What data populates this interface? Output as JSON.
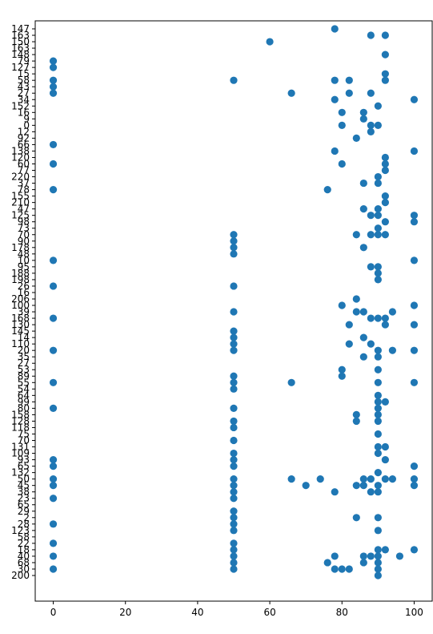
{
  "chart_data": {
    "type": "scatter",
    "title": "",
    "xlabel": "",
    "ylabel": "",
    "xlim": [
      -5,
      105
    ],
    "x_ticks": [
      0,
      20,
      40,
      60,
      80,
      100
    ],
    "y_categories": [
      "147",
      "163",
      "150",
      "163",
      "148",
      "79",
      "127",
      "15",
      "58",
      "43",
      "27",
      "34",
      "152",
      "16",
      "9",
      "0",
      "12",
      "92",
      "66",
      "138",
      "120",
      "60",
      "77",
      "220",
      "37",
      "78",
      "155",
      "210",
      "47",
      "125",
      "98",
      "73",
      "70",
      "90",
      "178",
      "48",
      "10",
      "95",
      "188",
      "198",
      "26",
      "16",
      "206",
      "100",
      "39",
      "168",
      "130",
      "145",
      "14",
      "110",
      "20",
      "35",
      "27",
      "53",
      "89",
      "55",
      "54",
      "64",
      "99",
      "80",
      "158",
      "128",
      "118",
      "75",
      "70",
      "131",
      "109",
      "93",
      "65",
      "132",
      "50",
      "45",
      "38",
      "23",
      "65",
      "29",
      "2",
      "28",
      "123",
      "58",
      "22",
      "18",
      "40",
      "68",
      "30",
      "200"
    ],
    "colors": {
      "marker": "#1f77b4"
    },
    "series": [
      {
        "points": [
          {
            "x": 78,
            "y": "147"
          },
          {
            "x": 88,
            "y": "163"
          },
          {
            "x": 60,
            "y": "150"
          },
          {
            "x": 92,
            "y": "163"
          },
          {
            "x": 92,
            "y": "148"
          },
          {
            "x": 0,
            "y": "79"
          },
          {
            "x": 0,
            "y": "127"
          },
          {
            "x": 92,
            "y": "15"
          },
          {
            "x": 92,
            "y": "58"
          },
          {
            "x": 0,
            "y": "43"
          },
          {
            "x": 66,
            "y": "27"
          },
          {
            "x": 78,
            "y": "34"
          },
          {
            "x": 100,
            "y": "34"
          },
          {
            "x": 90,
            "y": "152"
          },
          {
            "x": 80,
            "y": "16"
          },
          {
            "x": 86,
            "y": "9"
          },
          {
            "x": 80,
            "y": "0"
          },
          {
            "x": 88,
            "y": "0"
          },
          {
            "x": 90,
            "y": "0"
          },
          {
            "x": 88,
            "y": "12"
          },
          {
            "x": 84,
            "y": "92"
          },
          {
            "x": 0,
            "y": "66"
          },
          {
            "x": 78,
            "y": "138"
          },
          {
            "x": 100,
            "y": "138"
          },
          {
            "x": 92,
            "y": "120"
          },
          {
            "x": 0,
            "y": "60"
          },
          {
            "x": 80,
            "y": "60"
          },
          {
            "x": 92,
            "y": "60"
          },
          {
            "x": 92,
            "y": "77"
          },
          {
            "x": 90,
            "y": "220"
          },
          {
            "x": 86,
            "y": "37"
          },
          {
            "x": 90,
            "y": "37"
          },
          {
            "x": 0,
            "y": "78"
          },
          {
            "x": 76,
            "y": "78"
          },
          {
            "x": 92,
            "y": "155"
          },
          {
            "x": 92,
            "y": "210"
          },
          {
            "x": 86,
            "y": "47"
          },
          {
            "x": 90,
            "y": "47"
          },
          {
            "x": 88,
            "y": "125"
          },
          {
            "x": 90,
            "y": "125"
          },
          {
            "x": 100,
            "y": "125"
          },
          {
            "x": 92,
            "y": "98"
          },
          {
            "x": 100,
            "y": "98"
          },
          {
            "x": 90,
            "y": "73"
          },
          {
            "x": 50,
            "y": "70"
          },
          {
            "x": 84,
            "y": "70"
          },
          {
            "x": 88,
            "y": "70"
          },
          {
            "x": 50,
            "y": "90"
          },
          {
            "x": 50,
            "y": "178"
          },
          {
            "x": 86,
            "y": "178"
          },
          {
            "x": 50,
            "y": "48"
          },
          {
            "x": 0,
            "y": "10"
          },
          {
            "x": 100,
            "y": "10"
          },
          {
            "x": 88,
            "y": "95"
          },
          {
            "x": 90,
            "y": "95"
          },
          {
            "x": 90,
            "y": "188"
          },
          {
            "x": 90,
            "y": "198"
          },
          {
            "x": 0,
            "y": "26"
          },
          {
            "x": 50,
            "y": "26"
          },
          {
            "x": 86,
            "y": "16"
          },
          {
            "x": 84,
            "y": "206"
          },
          {
            "x": 80,
            "y": "100"
          },
          {
            "x": 100,
            "y": "100"
          },
          {
            "x": 50,
            "y": "39"
          },
          {
            "x": 84,
            "y": "39"
          },
          {
            "x": 86,
            "y": "39"
          },
          {
            "x": 94,
            "y": "39"
          },
          {
            "x": 0,
            "y": "168"
          },
          {
            "x": 88,
            "y": "168"
          },
          {
            "x": 90,
            "y": "168"
          },
          {
            "x": 92,
            "y": "168"
          },
          {
            "x": 82,
            "y": "130"
          },
          {
            "x": 92,
            "y": "130"
          },
          {
            "x": 100,
            "y": "130"
          },
          {
            "x": 50,
            "y": "145"
          },
          {
            "x": 50,
            "y": "14"
          },
          {
            "x": 86,
            "y": "14"
          },
          {
            "x": 50,
            "y": "110"
          },
          {
            "x": 82,
            "y": "110"
          },
          {
            "x": 88,
            "y": "110"
          },
          {
            "x": 0,
            "y": "20"
          },
          {
            "x": 50,
            "y": "20"
          },
          {
            "x": 90,
            "y": "20"
          },
          {
            "x": 94,
            "y": "20"
          },
          {
            "x": 100,
            "y": "20"
          },
          {
            "x": 86,
            "y": "35"
          },
          {
            "x": 90,
            "y": "35"
          },
          {
            "x": 0,
            "y": "27"
          },
          {
            "x": 82,
            "y": "27"
          },
          {
            "x": 88,
            "y": "27"
          },
          {
            "x": 80,
            "y": "53"
          },
          {
            "x": 90,
            "y": "53"
          },
          {
            "x": 80,
            "y": "89"
          },
          {
            "x": 50,
            "y": "89"
          },
          {
            "x": 0,
            "y": "55"
          },
          {
            "x": 50,
            "y": "55"
          },
          {
            "x": 66,
            "y": "55"
          },
          {
            "x": 90,
            "y": "55"
          },
          {
            "x": 100,
            "y": "55"
          },
          {
            "x": 50,
            "y": "54"
          },
          {
            "x": 90,
            "y": "64"
          },
          {
            "x": 90,
            "y": "99"
          },
          {
            "x": 92,
            "y": "99"
          },
          {
            "x": 0,
            "y": "80"
          },
          {
            "x": 50,
            "y": "80"
          },
          {
            "x": 90,
            "y": "80"
          },
          {
            "x": 84,
            "y": "158"
          },
          {
            "x": 90,
            "y": "158"
          },
          {
            "x": 50,
            "y": "128"
          },
          {
            "x": 84,
            "y": "128"
          },
          {
            "x": 90,
            "y": "128"
          },
          {
            "x": 50,
            "y": "118"
          },
          {
            "x": 90,
            "y": "75"
          },
          {
            "x": 50,
            "y": "70"
          },
          {
            "x": 90,
            "y": "70"
          },
          {
            "x": 92,
            "y": "70"
          },
          {
            "x": 90,
            "y": "131"
          },
          {
            "x": 92,
            "y": "131"
          },
          {
            "x": 50,
            "y": "109"
          },
          {
            "x": 90,
            "y": "109"
          },
          {
            "x": 0,
            "y": "93"
          },
          {
            "x": 50,
            "y": "93"
          },
          {
            "x": 92,
            "y": "93"
          },
          {
            "x": 0,
            "y": "65"
          },
          {
            "x": 90,
            "y": "132"
          },
          {
            "x": 0,
            "y": "50"
          },
          {
            "x": 50,
            "y": "50"
          },
          {
            "x": 66,
            "y": "50"
          },
          {
            "x": 74,
            "y": "50"
          },
          {
            "x": 86,
            "y": "50"
          },
          {
            "x": 88,
            "y": "50"
          },
          {
            "x": 92,
            "y": "50"
          },
          {
            "x": 94,
            "y": "50"
          },
          {
            "x": 100,
            "y": "50"
          },
          {
            "x": 0,
            "y": "45"
          },
          {
            "x": 50,
            "y": "45"
          },
          {
            "x": 70,
            "y": "45"
          },
          {
            "x": 84,
            "y": "45"
          },
          {
            "x": 86,
            "y": "45"
          },
          {
            "x": 90,
            "y": "45"
          },
          {
            "x": 100,
            "y": "45"
          },
          {
            "x": 50,
            "y": "38"
          },
          {
            "x": 78,
            "y": "38"
          },
          {
            "x": 88,
            "y": "38"
          },
          {
            "x": 90,
            "y": "38"
          },
          {
            "x": 0,
            "y": "23"
          },
          {
            "x": 50,
            "y": "23"
          },
          {
            "x": 50,
            "y": "65"
          },
          {
            "x": 100,
            "y": "65"
          },
          {
            "x": 50,
            "y": "29"
          },
          {
            "x": 50,
            "y": "2"
          },
          {
            "x": 84,
            "y": "2"
          },
          {
            "x": 90,
            "y": "2"
          },
          {
            "x": 0,
            "y": "28"
          },
          {
            "x": 50,
            "y": "28"
          },
          {
            "x": 50,
            "y": "123"
          },
          {
            "x": 90,
            "y": "123"
          },
          {
            "x": 0,
            "y": "58"
          },
          {
            "x": 50,
            "y": "58"
          },
          {
            "x": 78,
            "y": "58"
          },
          {
            "x": 82,
            "y": "58"
          },
          {
            "x": 0,
            "y": "22"
          },
          {
            "x": 50,
            "y": "22"
          },
          {
            "x": 50,
            "y": "18"
          },
          {
            "x": 90,
            "y": "18"
          },
          {
            "x": 92,
            "y": "18"
          },
          {
            "x": 100,
            "y": "18"
          },
          {
            "x": 0,
            "y": "40"
          },
          {
            "x": 50,
            "y": "40"
          },
          {
            "x": 78,
            "y": "40"
          },
          {
            "x": 86,
            "y": "40"
          },
          {
            "x": 88,
            "y": "40"
          },
          {
            "x": 90,
            "y": "40"
          },
          {
            "x": 96,
            "y": "40"
          },
          {
            "x": 50,
            "y": "68"
          },
          {
            "x": 76,
            "y": "68"
          },
          {
            "x": 86,
            "y": "68"
          },
          {
            "x": 90,
            "y": "68"
          },
          {
            "x": 0,
            "y": "30"
          },
          {
            "x": 50,
            "y": "30"
          },
          {
            "x": 78,
            "y": "30"
          },
          {
            "x": 80,
            "y": "30"
          },
          {
            "x": 82,
            "y": "30"
          },
          {
            "x": 90,
            "y": "30"
          },
          {
            "x": 90,
            "y": "200"
          }
        ]
      }
    ]
  }
}
